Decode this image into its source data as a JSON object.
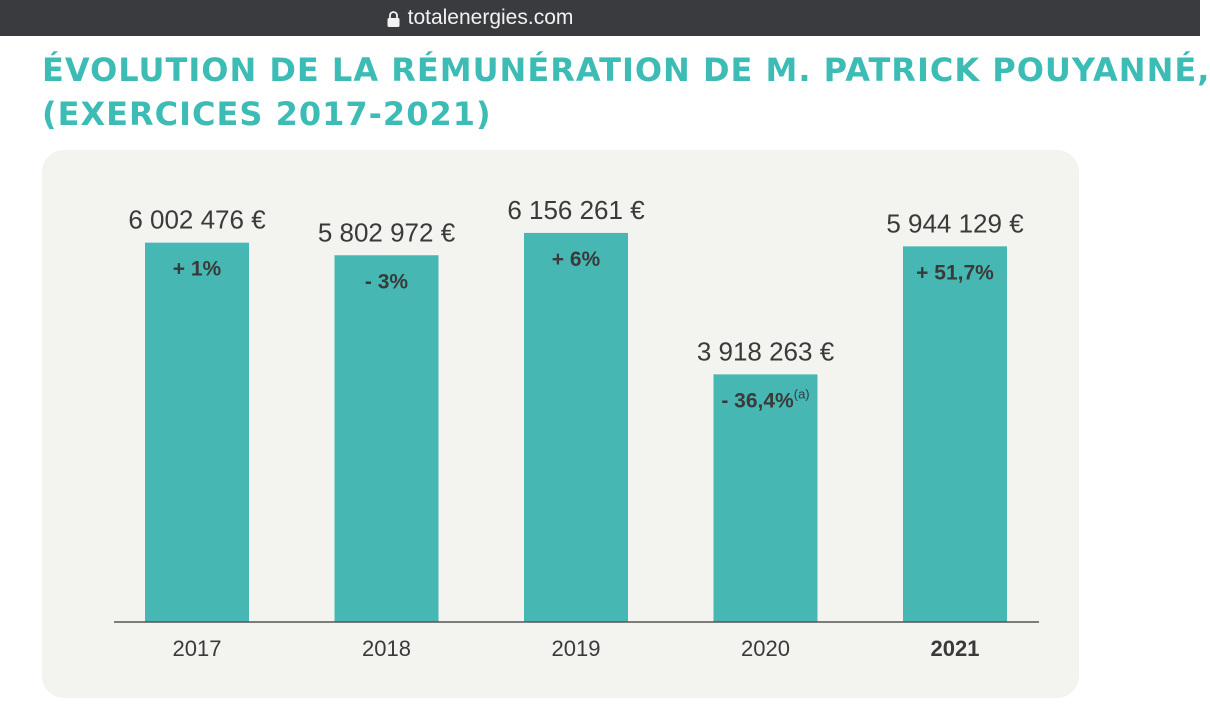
{
  "browser": {
    "url": "totalenergies.com",
    "lock_icon": "lock-icon"
  },
  "header": {
    "title_line1": "ÉVOLUTION DE LA RÉMUNÉRATION DE M. PATRICK POUYANNÉ,",
    "title_line2": "(EXERCICES 2017-2021)"
  },
  "colors": {
    "accent": "#3dbcb5",
    "bar": "#47b7b4",
    "panel": "#f3f3f0",
    "text": "#3a3a3a"
  },
  "chart_data": {
    "type": "bar",
    "categories": [
      "2017",
      "2018",
      "2019",
      "2020",
      "2021"
    ],
    "values": [
      6002476,
      5802972,
      6156261,
      3918263,
      5944129
    ],
    "value_labels": [
      "6 002 476 €",
      "5 802 972 €",
      "6 156 261 €",
      "3 918 263 €",
      "5 944 129 €"
    ],
    "change_labels": [
      "+ 1%",
      "- 3%",
      "+ 6%",
      "- 36,4%",
      "+ 51,7%"
    ],
    "change_notes": [
      "",
      "",
      "",
      "(a)",
      ""
    ],
    "bold_category": "2021",
    "title": "ÉVOLUTION DE LA RÉMUNÉRATION DE M. PATRICK POUYANNÉ, (EXERCICES 2017-2021)",
    "xlabel": "",
    "ylabel": "",
    "ylim": [
      0,
      6250000
    ],
    "grid": false,
    "legend": "none"
  }
}
